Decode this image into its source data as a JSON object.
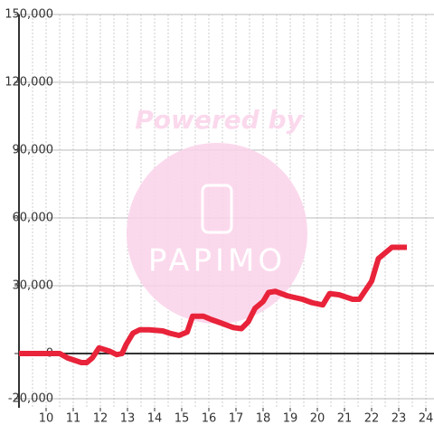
{
  "chart_data": {
    "type": "line",
    "watermark": [
      "Powered by",
      "PAPIMO"
    ],
    "x": [
      9.0,
      10.0,
      10.5,
      10.8,
      11.3,
      11.5,
      11.7,
      11.95,
      12.35,
      12.6,
      12.8,
      12.95,
      13.2,
      13.45,
      13.8,
      14.3,
      14.55,
      14.9,
      15.2,
      15.4,
      15.8,
      16.1,
      16.45,
      16.9,
      17.2,
      17.45,
      17.7,
      18.0,
      18.2,
      18.45,
      18.9,
      19.45,
      19.8,
      20.2,
      20.45,
      20.8,
      21.3,
      21.55,
      22.0,
      22.25,
      22.75,
      23.3
    ],
    "series": [
      {
        "color": "#e8233a",
        "values": [
          0,
          0,
          0,
          -2000,
          -4000,
          -4000,
          -2000,
          2500,
          1000,
          -500,
          0,
          4000,
          9000,
          10500,
          10500,
          10000,
          9000,
          8000,
          9500,
          16500,
          16500,
          15000,
          13500,
          11500,
          11000,
          14000,
          20000,
          23000,
          27000,
          27500,
          25500,
          24000,
          22500,
          21500,
          26500,
          26000,
          24000,
          24000,
          32000,
          42000,
          47000,
          47000
        ]
      }
    ],
    "xlim": [
      9,
      24.3
    ],
    "xticks": [
      10,
      11,
      12,
      13,
      14,
      15,
      16,
      17,
      18,
      19,
      20,
      21,
      22,
      23,
      24
    ],
    "ylim": [
      -24000,
      150000
    ],
    "yticks": [
      {
        "value": -20000,
        "label": "-20,000"
      },
      0,
      {
        "value": 30000,
        "label": "30,000"
      },
      {
        "value": 60000,
        "label": "60,000"
      },
      {
        "value": 90000,
        "label": "90,000"
      },
      {
        "value": 120000,
        "label": "120,000"
      },
      {
        "value": 150000,
        "label": "150,000"
      }
    ],
    "grid": true
  }
}
